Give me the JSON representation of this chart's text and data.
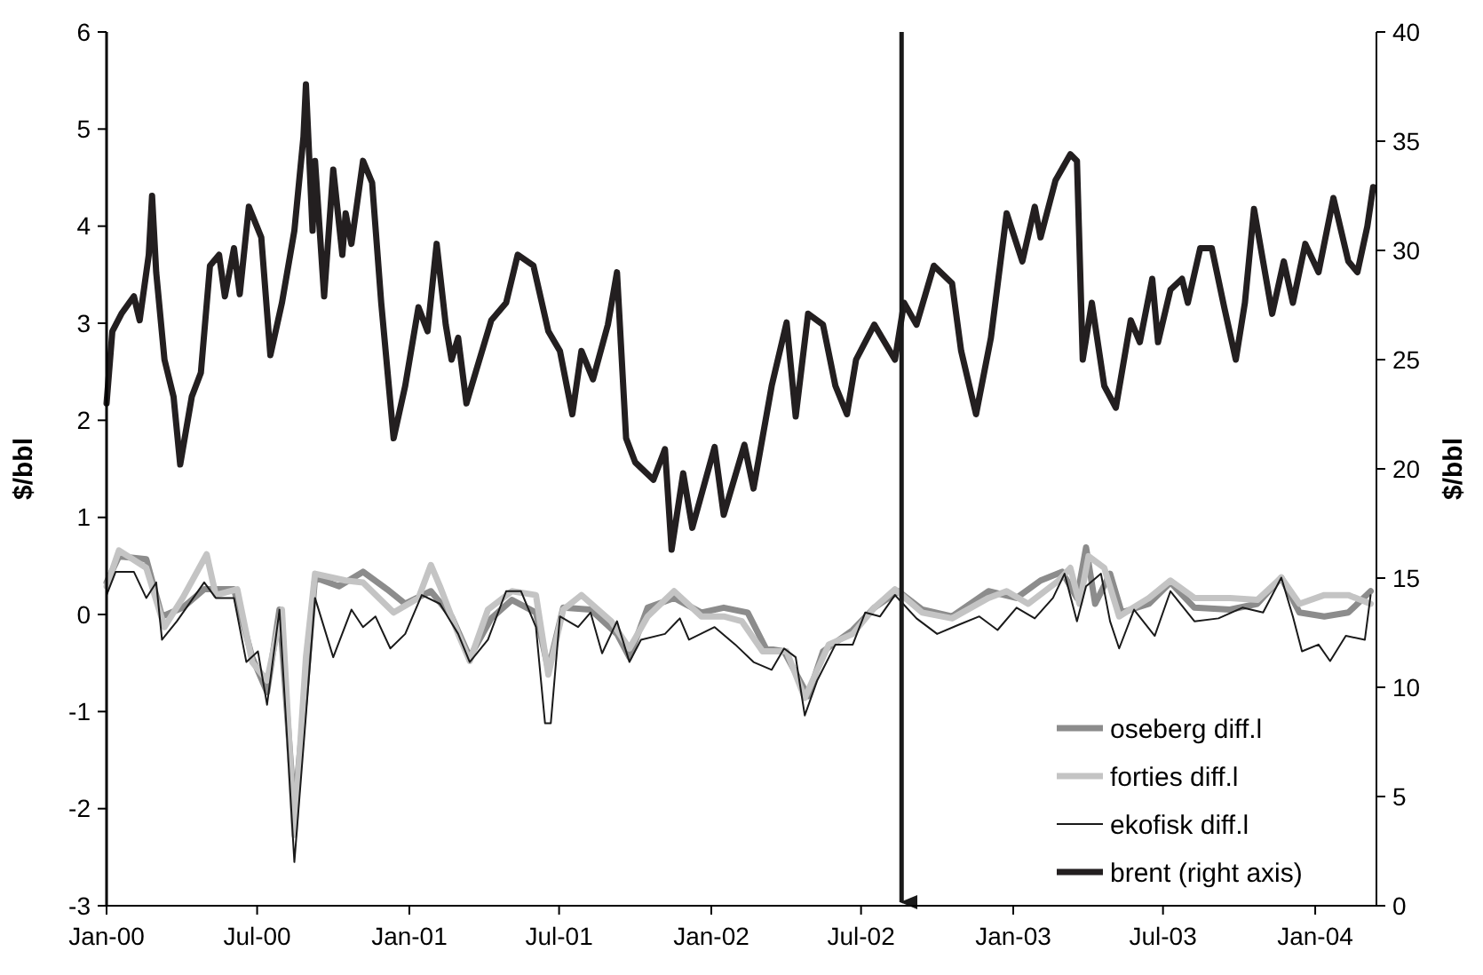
{
  "chart_data": {
    "type": "line",
    "ylabel": "$/bbl",
    "y2label": "$/bbl",
    "xlim": [
      "2000-01-01",
      "2004-03-15"
    ],
    "xticks": [
      {
        "value": "2000-01-01",
        "label": "Jan-00"
      },
      {
        "value": "2000-07-01",
        "label": "Jul-00"
      },
      {
        "value": "2001-01-01",
        "label": "Jan-01"
      },
      {
        "value": "2001-07-01",
        "label": "Jul-01"
      },
      {
        "value": "2002-01-01",
        "label": "Jan-02"
      },
      {
        "value": "2002-07-01",
        "label": "Jul-02"
      },
      {
        "value": "2003-01-01",
        "label": "Jan-03"
      },
      {
        "value": "2003-07-01",
        "label": "Jul-03"
      },
      {
        "value": "2004-01-01",
        "label": "Jan-04"
      }
    ],
    "ylim": [
      -3,
      6
    ],
    "yticks": [
      -3,
      -2,
      -1,
      0,
      1,
      2,
      3,
      4,
      5,
      6
    ],
    "y2lim": [
      0,
      40
    ],
    "y2ticks": [
      0,
      5,
      10,
      15,
      20,
      25,
      30,
      35,
      40
    ],
    "legend": "bottom right",
    "line_style": "solid",
    "ref_lines": [
      {
        "axis": "x",
        "value": "2002-08-19",
        "color": "#1a1a1a"
      }
    ],
    "series": [
      {
        "name": "oseberg diff.l",
        "color": "#8c8c8c",
        "x": [
          "2000-01-01",
          "2000-01-16",
          "2000-02-18",
          "2000-03-08",
          "2000-04-02",
          "2000-04-28",
          "2000-06-03",
          "2000-06-25",
          "2000-07-13",
          "2000-07-28",
          "2000-08-15",
          "2000-08-29",
          "2000-09-09",
          "2000-10-08",
          "2000-11-06",
          "2000-12-05",
          "2000-12-27",
          "2001-01-27",
          "2001-02-21",
          "2001-03-15",
          "2001-04-10",
          "2001-05-05",
          "2001-06-03",
          "2001-06-18",
          "2001-07-06",
          "2001-08-08",
          "2001-09-09",
          "2001-09-24",
          "2001-10-16",
          "2001-11-17",
          "2001-12-20",
          "2002-01-16",
          "2002-02-14",
          "2002-03-08",
          "2002-03-30",
          "2002-04-28",
          "2002-05-16",
          "2002-06-21",
          "2002-07-17",
          "2002-08-15",
          "2002-09-13",
          "2002-10-19",
          "2002-12-02",
          "2003-01-05",
          "2003-02-03",
          "2003-03-01",
          "2003-03-19",
          "2003-03-30",
          "2003-04-10",
          "2003-04-28",
          "2003-05-12",
          "2003-06-14",
          "2003-07-10",
          "2003-08-08",
          "2003-09-20",
          "2003-10-23",
          "2003-11-21",
          "2003-12-13",
          "2004-01-12",
          "2004-02-10",
          "2004-03-08"
        ],
        "values": [
          0.33,
          0.6,
          0.57,
          -0.02,
          0.07,
          0.26,
          0.26,
          -0.44,
          -0.8,
          0.05,
          -2.03,
          -0.75,
          0.38,
          0.29,
          0.44,
          0.26,
          0.11,
          0.24,
          -0.02,
          -0.44,
          -0.04,
          0.15,
          0.02,
          -0.57,
          0.07,
          0.05,
          -0.2,
          -0.44,
          0.07,
          0.17,
          0.02,
          0.07,
          0.02,
          -0.35,
          -0.38,
          -0.84,
          -0.38,
          -0.16,
          0.07,
          0.24,
          0.05,
          -0.02,
          0.24,
          0.17,
          0.35,
          0.44,
          0.17,
          0.69,
          0.11,
          0.42,
          0.02,
          0.11,
          0.33,
          0.07,
          0.05,
          0.11,
          0.38,
          0.02,
          -0.02,
          0.02,
          0.24
        ]
      },
      {
        "name": "forties diff.l",
        "color": "#c4c4c4",
        "x": [
          "2000-01-01",
          "2000-01-16",
          "2000-02-18",
          "2000-03-11",
          "2000-04-02",
          "2000-05-01",
          "2000-05-12",
          "2000-06-07",
          "2000-06-25",
          "2000-07-13",
          "2000-07-31",
          "2000-08-15",
          "2000-08-29",
          "2000-09-09",
          "2000-10-16",
          "2000-11-06",
          "2000-12-13",
          "2001-01-12",
          "2001-01-27",
          "2001-02-07",
          "2001-03-01",
          "2001-03-15",
          "2001-04-06",
          "2001-05-05",
          "2001-06-03",
          "2001-06-18",
          "2001-07-06",
          "2001-07-28",
          "2001-09-02",
          "2001-09-24",
          "2001-10-16",
          "2001-11-17",
          "2001-12-20",
          "2002-01-16",
          "2002-02-07",
          "2002-03-04",
          "2002-04-02",
          "2002-04-24",
          "2002-05-23",
          "2002-06-21",
          "2002-07-17",
          "2002-08-11",
          "2002-09-13",
          "2002-10-19",
          "2002-12-02",
          "2002-12-24",
          "2003-01-19",
          "2003-02-25",
          "2003-03-11",
          "2003-03-22",
          "2003-04-02",
          "2003-04-21",
          "2003-05-09",
          "2003-06-14",
          "2003-07-10",
          "2003-08-08",
          "2003-09-20",
          "2003-10-23",
          "2003-11-21",
          "2003-12-13",
          "2004-01-12",
          "2004-02-10",
          "2004-03-08"
        ],
        "values": [
          0.29,
          0.66,
          0.48,
          -0.13,
          0.17,
          0.62,
          0.2,
          0.26,
          -0.49,
          -0.68,
          0.05,
          -2.27,
          -0.44,
          0.42,
          0.35,
          0.33,
          0.02,
          0.17,
          0.51,
          0.29,
          -0.2,
          -0.48,
          0.05,
          0.24,
          0.2,
          -0.62,
          0.05,
          0.2,
          -0.07,
          -0.35,
          -0.02,
          0.24,
          -0.02,
          -0.02,
          -0.07,
          -0.38,
          -0.38,
          -0.86,
          -0.31,
          -0.2,
          0.07,
          0.26,
          0.02,
          -0.04,
          0.17,
          0.24,
          0.11,
          0.35,
          0.48,
          0.11,
          0.6,
          0.48,
          -0.02,
          0.17,
          0.35,
          0.17,
          0.17,
          0.15,
          0.38,
          0.11,
          0.2,
          0.2,
          0.11
        ]
      },
      {
        "name": "ekofisk diff.l",
        "color": "#1a1a1a",
        "x": [
          "2000-01-01",
          "2000-01-12",
          "2000-02-03",
          "2000-02-18",
          "2000-03-01",
          "2000-03-08",
          "2000-03-26",
          "2000-04-28",
          "2000-05-12",
          "2000-06-03",
          "2000-06-18",
          "2000-07-02",
          "2000-07-13",
          "2000-07-28",
          "2000-08-15",
          "2000-08-29",
          "2000-09-09",
          "2000-10-01",
          "2000-10-23",
          "2000-11-06",
          "2000-11-21",
          "2000-12-09",
          "2000-12-27",
          "2001-01-16",
          "2001-02-07",
          "2001-03-01",
          "2001-03-15",
          "2001-04-06",
          "2001-04-28",
          "2001-05-16",
          "2001-06-03",
          "2001-06-14",
          "2001-06-21",
          "2001-07-02",
          "2001-07-24",
          "2001-08-08",
          "2001-08-22",
          "2001-09-09",
          "2001-09-24",
          "2001-10-08",
          "2001-11-06",
          "2001-11-24",
          "2001-12-05",
          "2002-01-05",
          "2002-01-30",
          "2002-02-21",
          "2002-03-15",
          "2002-03-30",
          "2002-04-13",
          "2002-04-24",
          "2002-05-09",
          "2002-05-31",
          "2002-06-21",
          "2002-07-06",
          "2002-07-24",
          "2002-08-11",
          "2002-09-06",
          "2002-10-01",
          "2002-10-26",
          "2002-11-21",
          "2002-12-13",
          "2003-01-05",
          "2003-01-27",
          "2003-02-18",
          "2003-03-04",
          "2003-03-19",
          "2003-03-30",
          "2003-04-17",
          "2003-04-28",
          "2003-05-09",
          "2003-05-27",
          "2003-06-21",
          "2003-07-10",
          "2003-08-08",
          "2003-09-06",
          "2003-10-05",
          "2003-10-30",
          "2003-11-21",
          "2003-12-05",
          "2003-12-16",
          "2004-01-05",
          "2004-01-19",
          "2004-02-07",
          "2004-03-01",
          "2004-03-08"
        ],
        "values": [
          0.2,
          0.44,
          0.44,
          0.17,
          0.33,
          -0.26,
          -0.07,
          0.33,
          0.17,
          0.17,
          -0.49,
          -0.38,
          -0.93,
          0.05,
          -2.55,
          -1.04,
          0.17,
          -0.44,
          0.05,
          -0.13,
          -0.02,
          -0.35,
          -0.2,
          0.2,
          0.11,
          -0.2,
          -0.49,
          -0.26,
          0.24,
          0.24,
          -0.13,
          -1.12,
          -1.12,
          -0.02,
          -0.13,
          0.02,
          -0.4,
          -0.07,
          -0.49,
          -0.26,
          -0.2,
          -0.04,
          -0.26,
          -0.13,
          -0.31,
          -0.49,
          -0.57,
          -0.35,
          -0.44,
          -1.04,
          -0.68,
          -0.31,
          -0.31,
          0.02,
          -0.02,
          0.2,
          -0.04,
          -0.2,
          -0.11,
          -0.02,
          -0.16,
          0.07,
          -0.04,
          0.17,
          0.42,
          -0.07,
          0.29,
          0.42,
          -0.07,
          -0.35,
          0.05,
          -0.22,
          0.24,
          -0.07,
          -0.04,
          0.07,
          0.02,
          0.38,
          -0.02,
          -0.38,
          -0.31,
          -0.48,
          -0.22,
          -0.26,
          0.2
        ]
      },
      {
        "name": "brent (right axis)",
        "color": "#231f20",
        "axis": "y2",
        "x": [
          "2000-01-01",
          "2000-01-08",
          "2000-01-19",
          "2000-02-03",
          "2000-02-10",
          "2000-02-21",
          "2000-02-25",
          "2000-03-01",
          "2000-03-11",
          "2000-03-22",
          "2000-03-30",
          "2000-04-13",
          "2000-04-24",
          "2000-05-05",
          "2000-05-16",
          "2000-05-23",
          "2000-06-03",
          "2000-06-10",
          "2000-06-21",
          "2000-07-06",
          "2000-07-17",
          "2000-07-31",
          "2000-08-15",
          "2000-08-26",
          "2000-08-29",
          "2000-09-06",
          "2000-09-09",
          "2000-09-20",
          "2000-10-01",
          "2000-10-12",
          "2000-10-16",
          "2000-10-23",
          "2000-11-06",
          "2000-11-17",
          "2000-11-28",
          "2000-12-13",
          "2000-12-27",
          "2001-01-12",
          "2001-01-23",
          "2001-02-03",
          "2001-02-14",
          "2001-02-21",
          "2001-03-01",
          "2001-03-11",
          "2001-03-22",
          "2001-04-10",
          "2001-04-28",
          "2001-05-12",
          "2001-05-31",
          "2001-06-18",
          "2001-07-02",
          "2001-07-17",
          "2001-07-28",
          "2001-08-11",
          "2001-08-29",
          "2001-09-09",
          "2001-09-20",
          "2001-10-01",
          "2001-10-23",
          "2001-11-06",
          "2001-11-14",
          "2001-11-28",
          "2001-12-09",
          "2002-01-05",
          "2002-01-16",
          "2002-02-10",
          "2002-02-21",
          "2002-03-15",
          "2002-04-02",
          "2002-04-13",
          "2002-04-28",
          "2002-05-16",
          "2002-05-31",
          "2002-06-14",
          "2002-06-25",
          "2002-07-17",
          "2002-08-11",
          "2002-08-22",
          "2002-09-06",
          "2002-09-27",
          "2002-10-19",
          "2002-10-30",
          "2002-11-17",
          "2002-12-05",
          "2002-12-24",
          "2003-01-12",
          "2003-01-27",
          "2003-02-03",
          "2003-02-21",
          "2003-03-11",
          "2003-03-19",
          "2003-03-26",
          "2003-04-06",
          "2003-04-21",
          "2003-05-05",
          "2003-05-23",
          "2003-06-03",
          "2003-06-18",
          "2003-06-25",
          "2003-07-10",
          "2003-07-24",
          "2003-07-31",
          "2003-08-15",
          "2003-08-29",
          "2003-09-13",
          "2003-09-27",
          "2003-10-08",
          "2003-10-19",
          "2003-10-30",
          "2003-11-10",
          "2003-11-24",
          "2003-12-05",
          "2003-12-20",
          "2004-01-05",
          "2004-01-23",
          "2004-02-10",
          "2004-02-21",
          "2004-03-04",
          "2004-03-11"
        ],
        "values": [
          23.0,
          26.3,
          27.1,
          27.9,
          26.8,
          29.8,
          32.5,
          29.0,
          25.0,
          23.3,
          20.2,
          23.3,
          24.4,
          29.3,
          29.8,
          27.9,
          30.1,
          28.0,
          32.0,
          30.6,
          25.2,
          27.6,
          30.9,
          35.2,
          37.6,
          30.9,
          34.1,
          27.9,
          33.7,
          29.8,
          31.7,
          30.3,
          34.1,
          33.1,
          27.6,
          21.4,
          23.8,
          27.4,
          26.3,
          30.3,
          26.6,
          25.0,
          26.0,
          23.0,
          24.4,
          26.8,
          27.6,
          29.8,
          29.3,
          26.3,
          25.4,
          22.5,
          25.4,
          24.1,
          26.6,
          29.0,
          21.4,
          20.3,
          19.5,
          20.9,
          16.3,
          19.8,
          17.3,
          21.0,
          17.9,
          21.1,
          19.1,
          23.8,
          26.7,
          22.4,
          27.1,
          26.6,
          23.8,
          22.5,
          25.0,
          26.6,
          25.0,
          27.6,
          26.6,
          29.3,
          28.5,
          25.4,
          22.5,
          26.0,
          31.7,
          29.5,
          32.0,
          30.6,
          33.2,
          34.4,
          34.1,
          25.0,
          27.6,
          23.8,
          22.8,
          26.8,
          25.8,
          28.7,
          25.8,
          28.2,
          28.7,
          27.6,
          30.1,
          30.1,
          27.4,
          25.0,
          27.6,
          31.9,
          29.5,
          27.1,
          29.5,
          27.6,
          30.3,
          29.0,
          32.4,
          29.5,
          29.0,
          31.1,
          32.9
        ]
      }
    ]
  }
}
